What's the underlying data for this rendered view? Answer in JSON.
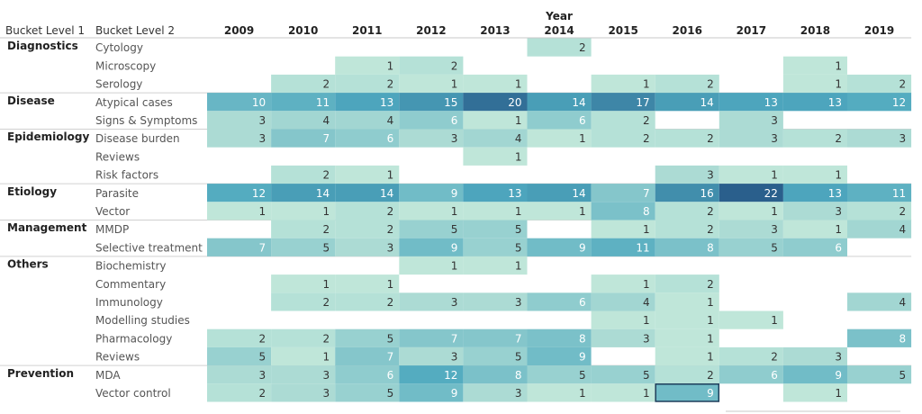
{
  "chart_data": {
    "type": "heatmap",
    "column_title": "Year",
    "header_bucket1": "Bucket Level 1",
    "header_bucket2": "Bucket Level 2",
    "years": [
      "2009",
      "2010",
      "2011",
      "2012",
      "2013",
      "2014",
      "2015",
      "2016",
      "2017",
      "2018",
      "2019"
    ],
    "rows": [
      {
        "level1": "Diagnostics",
        "level2": "Cytology",
        "values": [
          null,
          null,
          null,
          null,
          null,
          2,
          null,
          null,
          null,
          null,
          null
        ]
      },
      {
        "level1": "",
        "level2": "Microscopy",
        "values": [
          null,
          null,
          1,
          2,
          null,
          null,
          null,
          null,
          null,
          1,
          null
        ]
      },
      {
        "level1": "",
        "level2": "Serology",
        "values": [
          null,
          2,
          2,
          1,
          1,
          null,
          1,
          2,
          null,
          1,
          2
        ]
      },
      {
        "level1": "Disease",
        "level2": "Atypical cases",
        "values": [
          10,
          11,
          13,
          15,
          20,
          14,
          17,
          14,
          13,
          13,
          12
        ]
      },
      {
        "level1": "",
        "level2": "Signs & Symptoms",
        "values": [
          3,
          4,
          4,
          6,
          1,
          6,
          2,
          null,
          3,
          null,
          null
        ]
      },
      {
        "level1": "Epidemiology",
        "level2": "Disease burden",
        "values": [
          3,
          7,
          6,
          3,
          4,
          1,
          2,
          2,
          3,
          2,
          3
        ]
      },
      {
        "level1": "",
        "level2": "Reviews",
        "values": [
          null,
          null,
          null,
          null,
          1,
          null,
          null,
          null,
          null,
          null,
          null
        ]
      },
      {
        "level1": "",
        "level2": "Risk factors",
        "values": [
          null,
          2,
          1,
          null,
          null,
          null,
          null,
          3,
          1,
          1,
          null
        ]
      },
      {
        "level1": "Etiology",
        "level2": "Parasite",
        "values": [
          12,
          14,
          14,
          9,
          13,
          14,
          7,
          16,
          22,
          13,
          11
        ]
      },
      {
        "level1": "",
        "level2": "Vector",
        "values": [
          1,
          1,
          2,
          1,
          1,
          1,
          8,
          2,
          1,
          3,
          2
        ]
      },
      {
        "level1": "Management",
        "level2": "MMDP",
        "values": [
          null,
          2,
          2,
          5,
          5,
          null,
          1,
          2,
          3,
          1,
          4
        ]
      },
      {
        "level1": "",
        "level2": "Selective treatment",
        "values": [
          7,
          5,
          3,
          9,
          5,
          9,
          11,
          8,
          5,
          6,
          null
        ]
      },
      {
        "level1": "Others",
        "level2": "Biochemistry",
        "values": [
          null,
          null,
          null,
          1,
          1,
          null,
          null,
          null,
          null,
          null,
          null
        ]
      },
      {
        "level1": "",
        "level2": "Commentary",
        "values": [
          null,
          1,
          1,
          null,
          null,
          null,
          1,
          2,
          null,
          null,
          null
        ]
      },
      {
        "level1": "",
        "level2": "Immunology",
        "values": [
          null,
          2,
          2,
          3,
          3,
          6,
          4,
          1,
          null,
          null,
          4
        ]
      },
      {
        "level1": "",
        "level2": "Modelling studies",
        "values": [
          null,
          null,
          null,
          null,
          null,
          null,
          1,
          1,
          1,
          null,
          null
        ]
      },
      {
        "level1": "",
        "level2": "Pharmacology",
        "values": [
          2,
          2,
          5,
          7,
          7,
          8,
          3,
          1,
          null,
          null,
          8
        ]
      },
      {
        "level1": "",
        "level2": "Reviews",
        "values": [
          5,
          1,
          7,
          3,
          5,
          9,
          null,
          1,
          2,
          3,
          null
        ]
      },
      {
        "level1": "Prevention",
        "level2": "MDA",
        "values": [
          3,
          3,
          6,
          12,
          8,
          5,
          5,
          2,
          6,
          9,
          5
        ]
      },
      {
        "level1": "",
        "level2": "Vector control",
        "values": [
          2,
          3,
          5,
          9,
          3,
          1,
          1,
          9,
          null,
          1,
          null
        ]
      }
    ],
    "highlighted_cell": {
      "level2": "Vector control",
      "year": "2016"
    },
    "color_scale": {
      "low": "#bfe6d9",
      "mid": "#4fa9bf",
      "high": "#2a5f8c",
      "min": 1,
      "max": 22
    }
  }
}
